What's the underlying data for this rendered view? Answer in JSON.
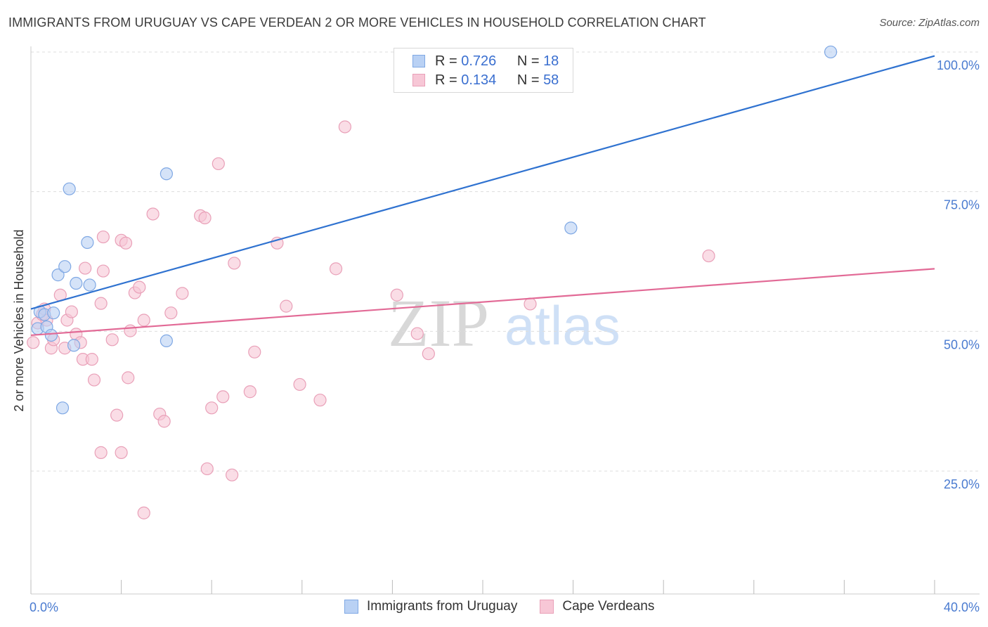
{
  "title": "IMMIGRANTS FROM URUGUAY VS CAPE VERDEAN 2 OR MORE VEHICLES IN HOUSEHOLD CORRELATION CHART",
  "source": "Source: ZipAtlas.com",
  "watermark": {
    "zip": "ZIP",
    "atlas": "atlas"
  },
  "legend": {
    "r_label": "R =",
    "n_label": "N =",
    "rows": [
      {
        "r": "0.726",
        "n": "18"
      },
      {
        "r": "0.134",
        "n": "58"
      }
    ]
  },
  "colors": {
    "uruguay_fill": "#b9d1f4",
    "uruguay_stroke": "#7fa8e4",
    "uruguay_line": "#2f72d0",
    "cape_fill": "#f7c7d6",
    "cape_stroke": "#e9a0b8",
    "cape_line": "#e26a96",
    "tick": "#4a7bd0",
    "grid": "#dddddd"
  },
  "chart_data": {
    "type": "scatter",
    "title": "IMMIGRANTS FROM URUGUAY VS CAPE VERDEAN 2 OR MORE VEHICLES IN HOUSEHOLD CORRELATION CHART",
    "xlabel": "",
    "ylabel": "2 or more Vehicles in Household",
    "xlim": [
      0,
      40
    ],
    "ylim": [
      3,
      101
    ],
    "x_tick_labels": [
      "0.0%",
      "40.0%"
    ],
    "y_ticks": [
      25,
      50,
      75,
      100
    ],
    "y_tick_labels": [
      "25.0%",
      "50.0%",
      "75.0%",
      "100.0%"
    ],
    "grid": "horizontal dashed",
    "legend_position": "top-center",
    "series": [
      {
        "name": "Immigrants from Uruguay",
        "points": [
          [
            0.3,
            50.5
          ],
          [
            0.4,
            53.5
          ],
          [
            0.6,
            53.0
          ],
          [
            0.7,
            50.8
          ],
          [
            0.9,
            49.3
          ],
          [
            1.0,
            53.3
          ],
          [
            1.2,
            60.1
          ],
          [
            1.5,
            61.6
          ],
          [
            1.7,
            75.5
          ],
          [
            1.9,
            47.5
          ],
          [
            2.0,
            58.6
          ],
          [
            2.5,
            65.9
          ],
          [
            2.6,
            58.3
          ],
          [
            1.4,
            36.3
          ],
          [
            6.0,
            78.2
          ],
          [
            6.0,
            48.3
          ],
          [
            23.9,
            68.5
          ],
          [
            35.4,
            100.0
          ]
        ],
        "trend": [
          [
            0,
            54.0
          ],
          [
            40,
            99.3
          ]
        ]
      },
      {
        "name": "Cape Verdeans",
        "points": [
          [
            0.1,
            48.0
          ],
          [
            0.3,
            51.5
          ],
          [
            0.5,
            53.0
          ],
          [
            0.6,
            54.0
          ],
          [
            0.7,
            52.0
          ],
          [
            0.9,
            47.0
          ],
          [
            1.0,
            48.5
          ],
          [
            1.3,
            56.5
          ],
          [
            1.5,
            47.0
          ],
          [
            1.6,
            52.0
          ],
          [
            1.8,
            53.5
          ],
          [
            2.0,
            49.5
          ],
          [
            2.2,
            48.0
          ],
          [
            2.3,
            45.0
          ],
          [
            2.4,
            61.3
          ],
          [
            2.7,
            45.0
          ],
          [
            2.8,
            41.3
          ],
          [
            3.1,
            55.0
          ],
          [
            3.2,
            60.8
          ],
          [
            3.2,
            66.9
          ],
          [
            3.6,
            48.5
          ],
          [
            3.8,
            35.0
          ],
          [
            4.0,
            66.3
          ],
          [
            4.2,
            65.8
          ],
          [
            4.3,
            41.7
          ],
          [
            4.4,
            50.1
          ],
          [
            4.6,
            56.9
          ],
          [
            4.8,
            57.9
          ],
          [
            5.0,
            52.0
          ],
          [
            5.4,
            71.0
          ],
          [
            5.7,
            35.2
          ],
          [
            5.9,
            33.9
          ],
          [
            6.2,
            53.3
          ],
          [
            6.7,
            56.8
          ],
          [
            7.5,
            70.7
          ],
          [
            7.7,
            70.3
          ],
          [
            7.8,
            25.4
          ],
          [
            8.0,
            36.3
          ],
          [
            8.3,
            80.0
          ],
          [
            8.5,
            38.3
          ],
          [
            8.9,
            24.3
          ],
          [
            9.0,
            62.2
          ],
          [
            9.7,
            39.2
          ],
          [
            9.9,
            46.3
          ],
          [
            10.9,
            65.8
          ],
          [
            11.3,
            54.5
          ],
          [
            11.9,
            40.5
          ],
          [
            12.8,
            37.7
          ],
          [
            13.5,
            61.2
          ],
          [
            13.9,
            86.6
          ],
          [
            16.2,
            56.5
          ],
          [
            17.1,
            49.6
          ],
          [
            17.6,
            46.0
          ],
          [
            22.1,
            54.9
          ],
          [
            30.0,
            63.5
          ],
          [
            3.1,
            28.3
          ],
          [
            4.0,
            28.3
          ],
          [
            5.0,
            17.5
          ]
        ],
        "trend": [
          [
            0,
            49.3
          ],
          [
            40,
            61.2
          ]
        ]
      }
    ]
  }
}
